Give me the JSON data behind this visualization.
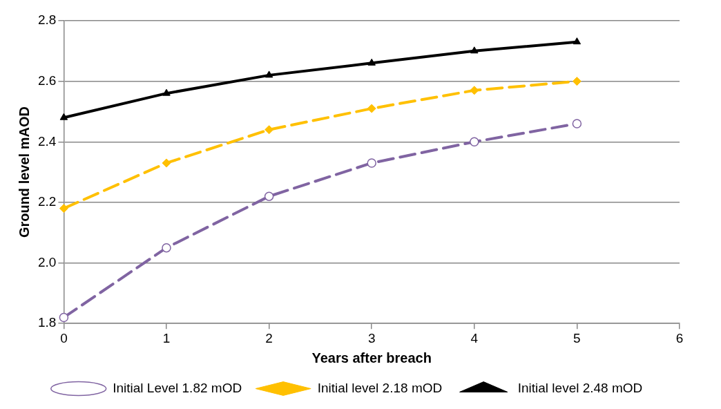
{
  "chart_data": {
    "type": "line",
    "xlabel": "Years after breach",
    "ylabel": "Ground level mAOD",
    "x": [
      0,
      1,
      2,
      3,
      4,
      5
    ],
    "series": [
      {
        "name": "Initial Level 1.82 mOD",
        "color": "#8064a2",
        "values": [
          1.82,
          2.05,
          2.22,
          2.33,
          2.4,
          2.46
        ],
        "marker": "circle",
        "line_style": "dashed"
      },
      {
        "name": "Initial level 2.18 mOD",
        "color": "#ffc000",
        "values": [
          2.18,
          2.33,
          2.44,
          2.51,
          2.57,
          2.6
        ],
        "marker": "diamond",
        "line_style": "dashed"
      },
      {
        "name": "Initial level 2.48 mOD",
        "color": "#000000",
        "values": [
          2.48,
          2.56,
          2.62,
          2.66,
          2.7,
          2.73
        ],
        "marker": "triangle",
        "line_style": "solid"
      }
    ],
    "xlim": [
      0,
      6
    ],
    "xticks": [
      0,
      1,
      2,
      3,
      4,
      5,
      6
    ],
    "ylim": [
      1.8,
      2.8
    ],
    "yticks": [
      {
        "value": 1.8,
        "label": "1.8"
      },
      {
        "value": 2.0,
        "label": "2.0"
      },
      {
        "value": 2.2,
        "label": "2.2"
      },
      {
        "value": 2.4,
        "label": "2.4"
      },
      {
        "value": 2.6,
        "label": "2.6"
      },
      {
        "value": 2.8,
        "label": "2.8"
      }
    ],
    "grid": "y",
    "legend": "bottom"
  }
}
